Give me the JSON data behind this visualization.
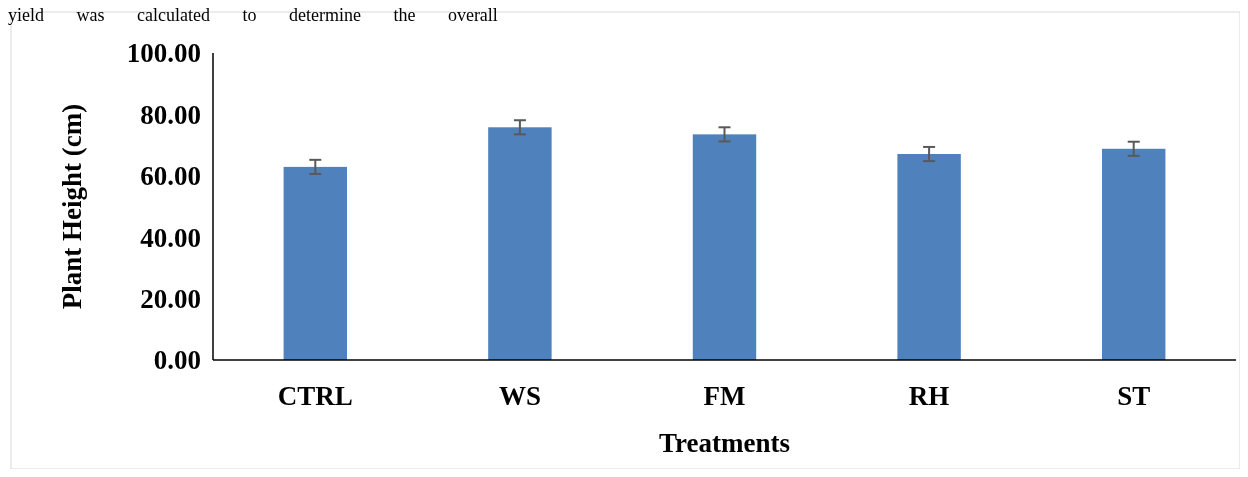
{
  "chart_data": {
    "type": "bar",
    "xlabel": "Treatments",
    "ylabel": "Plant Height (cm)",
    "categories": [
      "CTRL",
      "WS",
      "FM",
      "RH",
      "ST"
    ],
    "values": [
      62.9,
      75.8,
      73.5,
      67.1,
      68.8
    ],
    "errors": [
      2.3,
      2.3,
      2.3,
      2.3,
      2.3
    ],
    "color": "#4f81bd",
    "ylim": [
      0,
      100
    ],
    "yticks": [
      {
        "value": 0,
        "label": "0.00"
      },
      {
        "value": 20,
        "label": "20.00"
      },
      {
        "value": 40,
        "label": "40.00"
      },
      {
        "value": 60,
        "label": "60.00"
      },
      {
        "value": 80,
        "label": "80.00"
      },
      {
        "value": 100,
        "label": "100.00"
      }
    ],
    "annotations": [
      "yield was calculated to determine the overall"
    ]
  }
}
